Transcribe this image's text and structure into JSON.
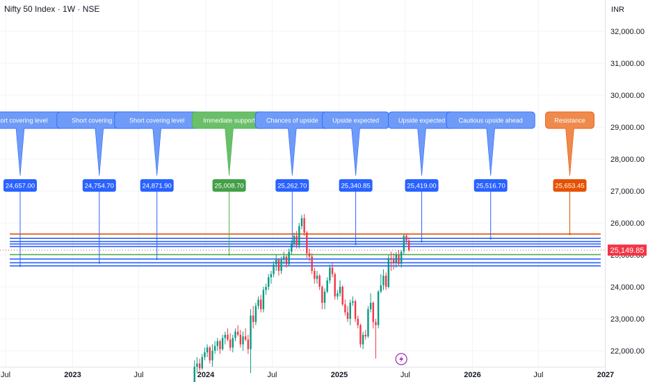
{
  "header": {
    "title": "Nifty 50 Index · 1W · NSE",
    "currency": "INR"
  },
  "chart_data": {
    "type": "candlestick",
    "title": "Nifty 50 Index · 1W · NSE",
    "y_axis": {
      "ylim": [
        21500,
        32500
      ],
      "ticks": [
        "22,000.00",
        "23,000.00",
        "24,000.00",
        "25,000.00",
        "26,000.00",
        "27,000.00",
        "28,000.00",
        "29,000.00",
        "30,000.00",
        "31,000.00",
        "32,000.00"
      ],
      "tick_values": [
        22000,
        23000,
        24000,
        25000,
        26000,
        27000,
        28000,
        29000,
        30000,
        31000,
        32000
      ],
      "currency": "INR"
    },
    "x_axis": {
      "ticks": [
        {
          "label": "Jul",
          "date": "2022-07-01",
          "bold": false
        },
        {
          "label": "2023",
          "date": "2023-01-01",
          "bold": true
        },
        {
          "label": "Jul",
          "date": "2023-07-01",
          "bold": false
        },
        {
          "label": "2024",
          "date": "2024-01-01",
          "bold": true
        },
        {
          "label": "Jul",
          "date": "2024-07-01",
          "bold": false
        },
        {
          "label": "2025",
          "date": "2025-01-01",
          "bold": true
        },
        {
          "label": "Jul",
          "date": "2025-07-01",
          "bold": false
        },
        {
          "label": "2026",
          "date": "2026-01-01",
          "bold": true
        },
        {
          "label": "Jul",
          "date": "2026-07-01",
          "bold": false
        },
        {
          "label": "2027",
          "date": "2027-01-01",
          "bold": true
        }
      ]
    },
    "last_price": {
      "value": 25149.85,
      "label": "25,149.85",
      "color": "#f23645"
    },
    "colors": {
      "up": "#089981",
      "down": "#f23645",
      "blue": "#2962ff",
      "green": "#4caf50",
      "orange": "#e65100"
    },
    "levels": [
      {
        "date": "2022-08-10",
        "value": 24657.0,
        "label": "24,657.00",
        "callout": "Short covering level",
        "color": "blue"
      },
      {
        "date": "2023-03-15",
        "value": 24754.7,
        "label": "24,754.70",
        "callout": "Short covering level",
        "color": "blue"
      },
      {
        "date": "2023-08-20",
        "value": 24871.9,
        "label": "24,871.90",
        "callout": "Short covering level",
        "color": "blue"
      },
      {
        "date": "2024-03-05",
        "value": 25008.7,
        "label": "25,008.70",
        "callout": "Immediate support",
        "color": "green"
      },
      {
        "date": "2024-08-25",
        "value": 25262.7,
        "label": "25,262.70",
        "callout": "Chances of upside",
        "color": "blue"
      },
      {
        "date": "2025-02-15",
        "value": 25340.85,
        "label": "25,340.85",
        "callout": "Upside expected",
        "color": "blue"
      },
      {
        "date": "2025-08-15",
        "value": 25419.0,
        "label": "25,419.00",
        "callout": "Upside expected",
        "color": "blue"
      },
      {
        "date": "2026-02-20",
        "value": 25516.7,
        "label": "25,516.70",
        "callout": "Cautious upside ahead",
        "color": "blue"
      },
      {
        "date": "2026-09-25",
        "value": 25653.45,
        "label": "25,653.45",
        "callout": "Resistance",
        "color": "orange"
      }
    ],
    "candles": [
      {
        "t": "2023-12-01",
        "o": 21000,
        "h": 21700,
        "l": 20900,
        "c": 21500
      },
      {
        "t": "2023-12-08",
        "o": 21500,
        "h": 21800,
        "l": 21300,
        "c": 21600
      },
      {
        "t": "2023-12-15",
        "o": 21600,
        "h": 21750,
        "l": 21350,
        "c": 21450
      },
      {
        "t": "2023-12-22",
        "o": 21450,
        "h": 21900,
        "l": 21400,
        "c": 21800
      },
      {
        "t": "2023-12-29",
        "o": 21800,
        "h": 22100,
        "l": 21700,
        "c": 21950
      },
      {
        "t": "2024-01-05",
        "o": 21950,
        "h": 22200,
        "l": 21800,
        "c": 22100
      },
      {
        "t": "2024-01-12",
        "o": 22100,
        "h": 22150,
        "l": 21600,
        "c": 21700
      },
      {
        "t": "2024-01-19",
        "o": 21700,
        "h": 22200,
        "l": 21500,
        "c": 22000
      },
      {
        "t": "2024-01-26",
        "o": 22000,
        "h": 22300,
        "l": 21900,
        "c": 22150
      },
      {
        "t": "2024-02-02",
        "o": 22150,
        "h": 22400,
        "l": 22000,
        "c": 22300
      },
      {
        "t": "2024-02-09",
        "o": 22300,
        "h": 22350,
        "l": 21900,
        "c": 22050
      },
      {
        "t": "2024-02-16",
        "o": 22050,
        "h": 22500,
        "l": 22000,
        "c": 22400
      },
      {
        "t": "2024-02-23",
        "o": 22400,
        "h": 22600,
        "l": 22200,
        "c": 22500
      },
      {
        "t": "2024-03-01",
        "o": 22500,
        "h": 22700,
        "l": 22300,
        "c": 22350
      },
      {
        "t": "2024-03-08",
        "o": 22350,
        "h": 22550,
        "l": 22000,
        "c": 22100
      },
      {
        "t": "2024-03-15",
        "o": 22100,
        "h": 22500,
        "l": 21950,
        "c": 22400
      },
      {
        "t": "2024-03-22",
        "o": 22400,
        "h": 22700,
        "l": 22300,
        "c": 22600
      },
      {
        "t": "2024-03-29",
        "o": 22600,
        "h": 22800,
        "l": 22450,
        "c": 22500
      },
      {
        "t": "2024-04-05",
        "o": 22500,
        "h": 22650,
        "l": 22100,
        "c": 22200
      },
      {
        "t": "2024-04-12",
        "o": 22200,
        "h": 22600,
        "l": 22000,
        "c": 22450
      },
      {
        "t": "2024-04-19",
        "o": 22450,
        "h": 22700,
        "l": 22300,
        "c": 22350
      },
      {
        "t": "2024-04-26",
        "o": 22350,
        "h": 22500,
        "l": 21900,
        "c": 22050
      },
      {
        "t": "2024-05-03",
        "o": 22050,
        "h": 23300,
        "l": 21300,
        "c": 23100
      },
      {
        "t": "2024-05-10",
        "o": 23100,
        "h": 23400,
        "l": 22700,
        "c": 22900
      },
      {
        "t": "2024-05-17",
        "o": 22900,
        "h": 23500,
        "l": 22800,
        "c": 23400
      },
      {
        "t": "2024-05-24",
        "o": 23400,
        "h": 23700,
        "l": 23300,
        "c": 23600
      },
      {
        "t": "2024-05-31",
        "o": 23600,
        "h": 23750,
        "l": 23200,
        "c": 23300
      },
      {
        "t": "2024-06-07",
        "o": 23300,
        "h": 24000,
        "l": 23200,
        "c": 23900
      },
      {
        "t": "2024-06-14",
        "o": 23900,
        "h": 24100,
        "l": 23750,
        "c": 24000
      },
      {
        "t": "2024-06-21",
        "o": 24000,
        "h": 24400,
        "l": 23900,
        "c": 24300
      },
      {
        "t": "2024-06-28",
        "o": 24300,
        "h": 24500,
        "l": 24100,
        "c": 24400
      },
      {
        "t": "2024-07-05",
        "o": 24400,
        "h": 24800,
        "l": 24300,
        "c": 24700
      },
      {
        "t": "2024-07-12",
        "o": 24700,
        "h": 25000,
        "l": 24500,
        "c": 24850
      },
      {
        "t": "2024-07-19",
        "o": 24850,
        "h": 24900,
        "l": 24350,
        "c": 24500
      },
      {
        "t": "2024-07-26",
        "o": 24500,
        "h": 24950,
        "l": 24400,
        "c": 24850
      },
      {
        "t": "2024-08-02",
        "o": 24850,
        "h": 25100,
        "l": 24700,
        "c": 24950
      },
      {
        "t": "2024-08-09",
        "o": 24950,
        "h": 25000,
        "l": 24600,
        "c": 24700
      },
      {
        "t": "2024-08-16",
        "o": 24700,
        "h": 25200,
        "l": 24650,
        "c": 25100
      },
      {
        "t": "2024-08-23",
        "o": 25100,
        "h": 25450,
        "l": 25000,
        "c": 25350
      },
      {
        "t": "2024-08-30",
        "o": 25350,
        "h": 25700,
        "l": 25250,
        "c": 25600
      },
      {
        "t": "2024-09-06",
        "o": 25600,
        "h": 25750,
        "l": 25200,
        "c": 25300
      },
      {
        "t": "2024-09-13",
        "o": 25300,
        "h": 26000,
        "l": 25200,
        "c": 25900
      },
      {
        "t": "2024-09-20",
        "o": 25900,
        "h": 26250,
        "l": 25800,
        "c": 26150
      },
      {
        "t": "2024-09-27",
        "o": 26150,
        "h": 26280,
        "l": 25600,
        "c": 25700
      },
      {
        "t": "2024-10-04",
        "o": 25700,
        "h": 25750,
        "l": 24900,
        "c": 25050
      },
      {
        "t": "2024-10-11",
        "o": 25050,
        "h": 25200,
        "l": 24800,
        "c": 24950
      },
      {
        "t": "2024-10-18",
        "o": 24950,
        "h": 25050,
        "l": 24400,
        "c": 24500
      },
      {
        "t": "2024-10-25",
        "o": 24500,
        "h": 24600,
        "l": 24100,
        "c": 24250
      },
      {
        "t": "2024-11-01",
        "o": 24250,
        "h": 24500,
        "l": 24100,
        "c": 24350
      },
      {
        "t": "2024-11-08",
        "o": 24350,
        "h": 24400,
        "l": 23900,
        "c": 24000
      },
      {
        "t": "2024-11-15",
        "o": 24000,
        "h": 24050,
        "l": 23300,
        "c": 23500
      },
      {
        "t": "2024-11-22",
        "o": 23500,
        "h": 23950,
        "l": 23300,
        "c": 23850
      },
      {
        "t": "2024-11-29",
        "o": 23850,
        "h": 24300,
        "l": 23800,
        "c": 24200
      },
      {
        "t": "2024-12-06",
        "o": 24200,
        "h": 24700,
        "l": 24100,
        "c": 24600
      },
      {
        "t": "2024-12-13",
        "o": 24600,
        "h": 24750,
        "l": 24300,
        "c": 24400
      },
      {
        "t": "2024-12-20",
        "o": 24400,
        "h": 24450,
        "l": 23600,
        "c": 23700
      },
      {
        "t": "2024-12-27",
        "o": 23700,
        "h": 23900,
        "l": 23600,
        "c": 23800
      },
      {
        "t": "2025-01-03",
        "o": 23800,
        "h": 24200,
        "l": 23700,
        "c": 24000
      },
      {
        "t": "2025-01-10",
        "o": 24000,
        "h": 24050,
        "l": 23400,
        "c": 23450
      },
      {
        "t": "2025-01-17",
        "o": 23450,
        "h": 23600,
        "l": 23100,
        "c": 23200
      },
      {
        "t": "2025-01-24",
        "o": 23200,
        "h": 23400,
        "l": 22900,
        "c": 23000
      },
      {
        "t": "2025-01-31",
        "o": 23000,
        "h": 23600,
        "l": 22800,
        "c": 23500
      },
      {
        "t": "2025-02-07",
        "o": 23500,
        "h": 23700,
        "l": 23400,
        "c": 23550
      },
      {
        "t": "2025-02-14",
        "o": 23550,
        "h": 23600,
        "l": 22900,
        "c": 23000
      },
      {
        "t": "2025-02-21",
        "o": 23000,
        "h": 23100,
        "l": 22700,
        "c": 22800
      },
      {
        "t": "2025-02-28",
        "o": 22800,
        "h": 22850,
        "l": 22100,
        "c": 22200
      },
      {
        "t": "2025-03-07",
        "o": 22200,
        "h": 22600,
        "l": 22050,
        "c": 22500
      },
      {
        "t": "2025-03-14",
        "o": 22500,
        "h": 22650,
        "l": 22350,
        "c": 22450
      },
      {
        "t": "2025-03-21",
        "o": 22450,
        "h": 23400,
        "l": 22400,
        "c": 23300
      },
      {
        "t": "2025-03-28",
        "o": 23300,
        "h": 23800,
        "l": 23200,
        "c": 23500
      },
      {
        "t": "2025-04-04",
        "o": 23500,
        "h": 23550,
        "l": 22700,
        "c": 22900
      },
      {
        "t": "2025-04-11",
        "o": 22900,
        "h": 23000,
        "l": 21750,
        "c": 22800
      },
      {
        "t": "2025-04-18",
        "o": 22800,
        "h": 23900,
        "l": 22700,
        "c": 23850
      },
      {
        "t": "2025-04-25",
        "o": 23850,
        "h": 24400,
        "l": 23800,
        "c": 24050
      },
      {
        "t": "2025-05-02",
        "o": 24050,
        "h": 24550,
        "l": 23900,
        "c": 24350
      },
      {
        "t": "2025-05-09",
        "o": 24350,
        "h": 24450,
        "l": 23900,
        "c": 24000
      },
      {
        "t": "2025-05-16",
        "o": 24000,
        "h": 25000,
        "l": 23950,
        "c": 24900
      },
      {
        "t": "2025-05-23",
        "o": 24900,
        "h": 25100,
        "l": 24500,
        "c": 24850
      },
      {
        "t": "2025-05-30",
        "o": 24850,
        "h": 25050,
        "l": 24550,
        "c": 24750
      },
      {
        "t": "2025-06-06",
        "o": 24750,
        "h": 25100,
        "l": 24600,
        "c": 25000
      },
      {
        "t": "2025-06-13",
        "o": 25000,
        "h": 25150,
        "l": 24650,
        "c": 24720
      },
      {
        "t": "2025-06-20",
        "o": 24720,
        "h": 25150,
        "l": 24600,
        "c": 25100
      },
      {
        "t": "2025-06-27",
        "o": 25100,
        "h": 25650,
        "l": 25000,
        "c": 25600
      },
      {
        "t": "2025-07-04",
        "o": 25600,
        "h": 25670,
        "l": 25350,
        "c": 25450
      },
      {
        "t": "2025-07-11",
        "o": 25450,
        "h": 25550,
        "l": 25100,
        "c": 25150
      }
    ]
  }
}
